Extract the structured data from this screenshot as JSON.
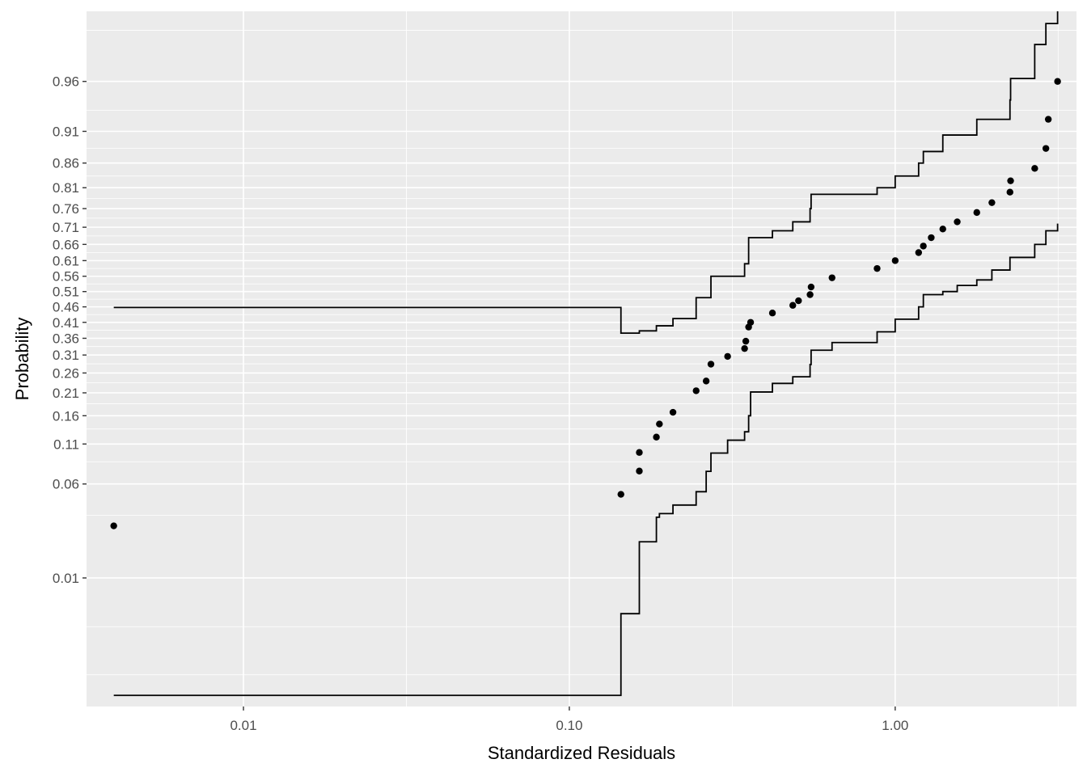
{
  "chart_data": {
    "type": "scatter",
    "xlabel": "Standardized Residuals",
    "ylabel": "Probability",
    "x_scale": "log10",
    "y_scale": "probability",
    "xlim": [
      0.0033,
      3.6
    ],
    "ylim": [
      0.00036,
      0.99
    ],
    "x_ticks": [
      {
        "value": 0.01,
        "label": "0.01"
      },
      {
        "value": 0.1,
        "label": "0.10"
      },
      {
        "value": 1.0,
        "label": "1.00"
      }
    ],
    "y_ticks": [
      {
        "value": 0.01,
        "label": "0.01"
      },
      {
        "value": 0.06,
        "label": "0.06"
      },
      {
        "value": 0.11,
        "label": "0.11"
      },
      {
        "value": 0.16,
        "label": "0.16"
      },
      {
        "value": 0.21,
        "label": "0.21"
      },
      {
        "value": 0.26,
        "label": "0.26"
      },
      {
        "value": 0.31,
        "label": "0.31"
      },
      {
        "value": 0.36,
        "label": "0.36"
      },
      {
        "value": 0.41,
        "label": "0.41"
      },
      {
        "value": 0.46,
        "label": "0.46"
      },
      {
        "value": 0.51,
        "label": "0.51"
      },
      {
        "value": 0.56,
        "label": "0.56"
      },
      {
        "value": 0.61,
        "label": "0.61"
      },
      {
        "value": 0.66,
        "label": "0.66"
      },
      {
        "value": 0.71,
        "label": "0.71"
      },
      {
        "value": 0.76,
        "label": "0.76"
      },
      {
        "value": 0.81,
        "label": "0.81"
      },
      {
        "value": 0.86,
        "label": "0.86"
      },
      {
        "value": 0.91,
        "label": "0.91"
      },
      {
        "value": 0.96,
        "label": "0.96"
      }
    ],
    "grid": true,
    "legend": "none",
    "colors": {
      "panel": "#ebebeb",
      "grid": "#ffffff",
      "points": "#000000",
      "band": "#000000",
      "tick_text": "#4d4d4d"
    },
    "points": [
      {
        "x": 0.004,
        "y": 0.0288
      },
      {
        "x": 0.144,
        "y": 0.0505
      },
      {
        "x": 0.164,
        "y": 0.0737
      },
      {
        "x": 0.164,
        "y": 0.0975
      },
      {
        "x": 0.185,
        "y": 0.121
      },
      {
        "x": 0.189,
        "y": 0.144
      },
      {
        "x": 0.208,
        "y": 0.167
      },
      {
        "x": 0.245,
        "y": 0.215
      },
      {
        "x": 0.263,
        "y": 0.239
      },
      {
        "x": 0.272,
        "y": 0.284
      },
      {
        "x": 0.306,
        "y": 0.306
      },
      {
        "x": 0.345,
        "y": 0.329
      },
      {
        "x": 0.348,
        "y": 0.351
      },
      {
        "x": 0.355,
        "y": 0.395
      },
      {
        "x": 0.36,
        "y": 0.41
      },
      {
        "x": 0.42,
        "y": 0.44
      },
      {
        "x": 0.485,
        "y": 0.465
      },
      {
        "x": 0.505,
        "y": 0.48
      },
      {
        "x": 0.548,
        "y": 0.5
      },
      {
        "x": 0.552,
        "y": 0.525
      },
      {
        "x": 0.64,
        "y": 0.555
      },
      {
        "x": 0.88,
        "y": 0.585
      },
      {
        "x": 1.0,
        "y": 0.61
      },
      {
        "x": 1.18,
        "y": 0.635
      },
      {
        "x": 1.22,
        "y": 0.655
      },
      {
        "x": 1.29,
        "y": 0.68
      },
      {
        "x": 1.4,
        "y": 0.705
      },
      {
        "x": 1.55,
        "y": 0.725
      },
      {
        "x": 1.78,
        "y": 0.75
      },
      {
        "x": 1.98,
        "y": 0.775
      },
      {
        "x": 2.25,
        "y": 0.8
      },
      {
        "x": 2.26,
        "y": 0.825
      },
      {
        "x": 2.68,
        "y": 0.85
      },
      {
        "x": 2.9,
        "y": 0.885
      },
      {
        "x": 2.95,
        "y": 0.925
      },
      {
        "x": 3.15,
        "y": 0.96
      }
    ],
    "upper_band": [
      [
        0.004,
        0.458
      ],
      [
        0.144,
        0.458
      ],
      [
        0.144,
        0.376
      ],
      [
        0.164,
        0.376
      ],
      [
        0.164,
        0.383
      ],
      [
        0.185,
        0.383
      ],
      [
        0.185,
        0.399
      ],
      [
        0.208,
        0.399
      ],
      [
        0.208,
        0.422
      ],
      [
        0.245,
        0.422
      ],
      [
        0.245,
        0.49
      ],
      [
        0.272,
        0.49
      ],
      [
        0.272,
        0.56
      ],
      [
        0.345,
        0.56
      ],
      [
        0.345,
        0.6
      ],
      [
        0.355,
        0.6
      ],
      [
        0.355,
        0.68
      ],
      [
        0.42,
        0.68
      ],
      [
        0.42,
        0.7
      ],
      [
        0.485,
        0.7
      ],
      [
        0.485,
        0.725
      ],
      [
        0.548,
        0.725
      ],
      [
        0.548,
        0.76
      ],
      [
        0.552,
        0.76
      ],
      [
        0.552,
        0.795
      ],
      [
        0.88,
        0.795
      ],
      [
        0.88,
        0.81
      ],
      [
        1.0,
        0.81
      ],
      [
        1.0,
        0.835
      ],
      [
        1.18,
        0.835
      ],
      [
        1.18,
        0.86
      ],
      [
        1.22,
        0.86
      ],
      [
        1.22,
        0.88
      ],
      [
        1.4,
        0.88
      ],
      [
        1.4,
        0.905
      ],
      [
        1.78,
        0.905
      ],
      [
        1.78,
        0.925
      ],
      [
        2.25,
        0.925
      ],
      [
        2.25,
        0.945
      ],
      [
        2.26,
        0.945
      ],
      [
        2.26,
        0.962
      ],
      [
        2.68,
        0.962
      ],
      [
        2.68,
        0.98
      ],
      [
        2.9,
        0.98
      ],
      [
        2.9,
        0.987
      ],
      [
        3.15,
        0.987
      ],
      [
        3.15,
        0.99
      ]
    ],
    "lower_band": [
      [
        0.004,
        0.0005
      ],
      [
        0.144,
        0.0005
      ],
      [
        0.144,
        0.0044
      ],
      [
        0.164,
        0.0044
      ],
      [
        0.164,
        0.0212
      ],
      [
        0.185,
        0.0212
      ],
      [
        0.185,
        0.0338
      ],
      [
        0.189,
        0.0338
      ],
      [
        0.189,
        0.0361
      ],
      [
        0.208,
        0.0361
      ],
      [
        0.208,
        0.042
      ],
      [
        0.245,
        0.042
      ],
      [
        0.245,
        0.0528
      ],
      [
        0.263,
        0.0528
      ],
      [
        0.263,
        0.0734
      ],
      [
        0.272,
        0.0734
      ],
      [
        0.272,
        0.0966
      ],
      [
        0.306,
        0.0966
      ],
      [
        0.306,
        0.116
      ],
      [
        0.345,
        0.116
      ],
      [
        0.345,
        0.13
      ],
      [
        0.355,
        0.13
      ],
      [
        0.355,
        0.16
      ],
      [
        0.36,
        0.16
      ],
      [
        0.36,
        0.212
      ],
      [
        0.42,
        0.212
      ],
      [
        0.42,
        0.233
      ],
      [
        0.485,
        0.233
      ],
      [
        0.485,
        0.25
      ],
      [
        0.548,
        0.25
      ],
      [
        0.548,
        0.283
      ],
      [
        0.552,
        0.283
      ],
      [
        0.552,
        0.324
      ],
      [
        0.64,
        0.324
      ],
      [
        0.64,
        0.347
      ],
      [
        0.88,
        0.347
      ],
      [
        0.88,
        0.38
      ],
      [
        1.0,
        0.38
      ],
      [
        1.0,
        0.42
      ],
      [
        1.18,
        0.42
      ],
      [
        1.18,
        0.46
      ],
      [
        1.22,
        0.46
      ],
      [
        1.22,
        0.5
      ],
      [
        1.4,
        0.5
      ],
      [
        1.4,
        0.51
      ],
      [
        1.55,
        0.51
      ],
      [
        1.55,
        0.53
      ],
      [
        1.78,
        0.53
      ],
      [
        1.78,
        0.548
      ],
      [
        1.98,
        0.548
      ],
      [
        1.98,
        0.58
      ],
      [
        2.25,
        0.58
      ],
      [
        2.25,
        0.62
      ],
      [
        2.68,
        0.62
      ],
      [
        2.68,
        0.66
      ],
      [
        2.9,
        0.66
      ],
      [
        2.9,
        0.7
      ],
      [
        3.15,
        0.7
      ],
      [
        3.15,
        0.72
      ]
    ]
  }
}
